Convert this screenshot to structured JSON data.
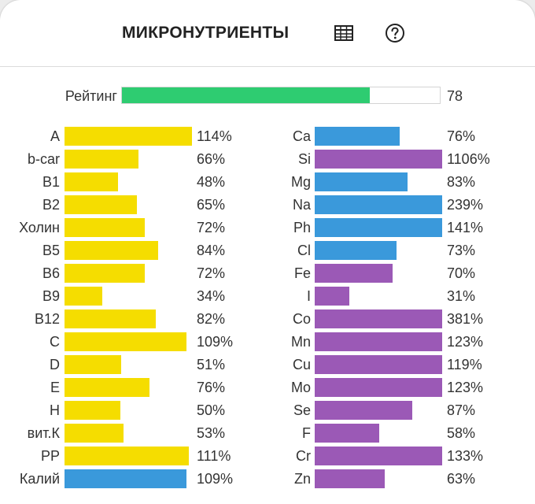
{
  "header": {
    "title": "МИКРОНУТРИЕНТЫ",
    "icons": [
      "table-icon",
      "help-icon"
    ]
  },
  "rating": {
    "label": "Рейтинг",
    "value": 78,
    "max": 100,
    "color": "#2ecc71"
  },
  "colors": {
    "yellow": "#f5dd00",
    "blue": "#3a99db",
    "purple": "#9b59b6"
  },
  "chart_data": {
    "type": "bar",
    "orientation": "horizontal",
    "scale_max_percent": 100,
    "columns": [
      {
        "items": [
          {
            "label": "A",
            "value": 114,
            "display": "114%",
            "color": "yellow"
          },
          {
            "label": "b-car",
            "value": 66,
            "display": "66%",
            "color": "yellow"
          },
          {
            "label": "B1",
            "value": 48,
            "display": "48%",
            "color": "yellow"
          },
          {
            "label": "B2",
            "value": 65,
            "display": "65%",
            "color": "yellow"
          },
          {
            "label": "Холин",
            "value": 72,
            "display": "72%",
            "color": "yellow"
          },
          {
            "label": "B5",
            "value": 84,
            "display": "84%",
            "color": "yellow"
          },
          {
            "label": "B6",
            "value": 72,
            "display": "72%",
            "color": "yellow"
          },
          {
            "label": "B9",
            "value": 34,
            "display": "34%",
            "color": "yellow"
          },
          {
            "label": "B12",
            "value": 82,
            "display": "82%",
            "color": "yellow"
          },
          {
            "label": "C",
            "value": 109,
            "display": "109%",
            "color": "yellow"
          },
          {
            "label": "D",
            "value": 51,
            "display": "51%",
            "color": "yellow"
          },
          {
            "label": "E",
            "value": 76,
            "display": "76%",
            "color": "yellow"
          },
          {
            "label": "H",
            "value": 50,
            "display": "50%",
            "color": "yellow"
          },
          {
            "label": "вит.К",
            "value": 53,
            "display": "53%",
            "color": "yellow"
          },
          {
            "label": "PP",
            "value": 111,
            "display": "111%",
            "color": "yellow"
          },
          {
            "label": "Калий",
            "value": 109,
            "display": "109%",
            "color": "blue"
          }
        ]
      },
      {
        "items": [
          {
            "label": "Ca",
            "value": 76,
            "display": "76%",
            "color": "blue"
          },
          {
            "label": "Si",
            "value": 1106,
            "display": "1106%",
            "color": "purple"
          },
          {
            "label": "Mg",
            "value": 83,
            "display": "83%",
            "color": "blue"
          },
          {
            "label": "Na",
            "value": 239,
            "display": "239%",
            "color": "blue"
          },
          {
            "label": "Ph",
            "value": 141,
            "display": "141%",
            "color": "blue"
          },
          {
            "label": "Cl",
            "value": 73,
            "display": "73%",
            "color": "blue"
          },
          {
            "label": "Fe",
            "value": 70,
            "display": "70%",
            "color": "purple"
          },
          {
            "label": "I",
            "value": 31,
            "display": "31%",
            "color": "purple"
          },
          {
            "label": "Co",
            "value": 381,
            "display": "381%",
            "color": "purple"
          },
          {
            "label": "Mn",
            "value": 123,
            "display": "123%",
            "color": "purple"
          },
          {
            "label": "Cu",
            "value": 119,
            "display": "119%",
            "color": "purple"
          },
          {
            "label": "Mo",
            "value": 123,
            "display": "123%",
            "color": "purple"
          },
          {
            "label": "Se",
            "value": 87,
            "display": "87%",
            "color": "purple"
          },
          {
            "label": "F",
            "value": 58,
            "display": "58%",
            "color": "purple"
          },
          {
            "label": "Cr",
            "value": 133,
            "display": "133%",
            "color": "purple"
          },
          {
            "label": "Zn",
            "value": 63,
            "display": "63%",
            "color": "purple"
          }
        ]
      }
    ]
  }
}
